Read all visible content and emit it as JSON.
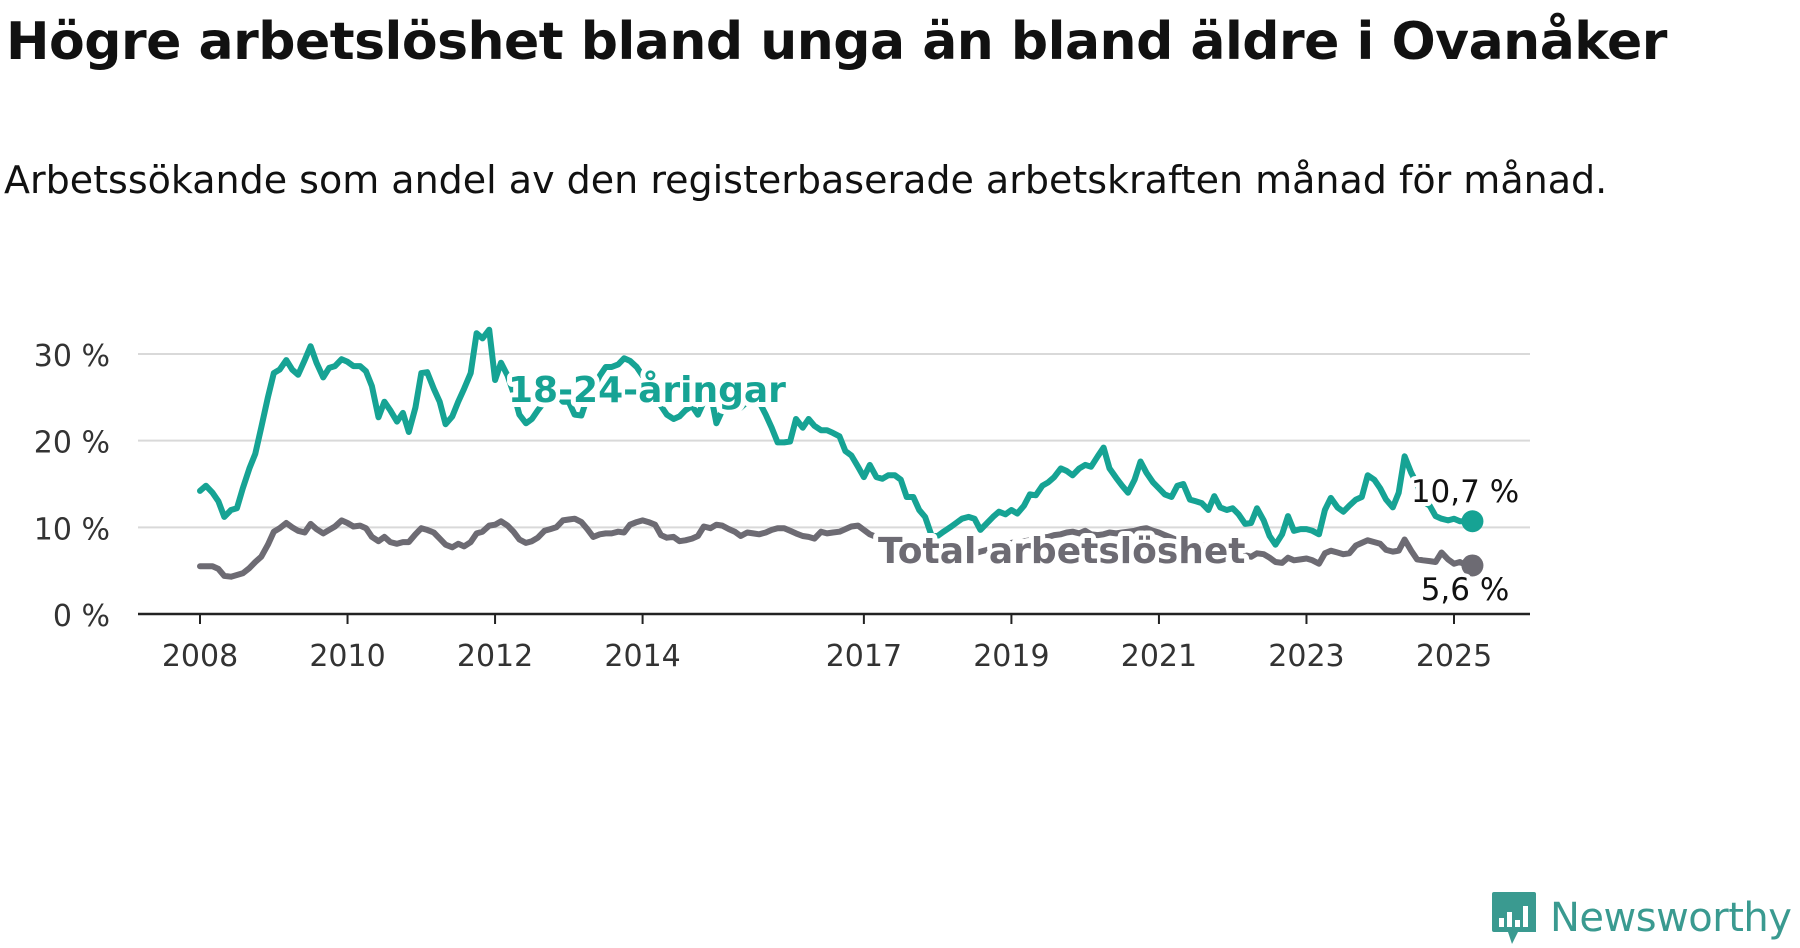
{
  "title": "Högre arbetslöshet bland unga än bland äldre i Ovanåker",
  "subtitle": "Arbetssökande som andel av den registerbaserade arbetskraften månad för månad.",
  "brand": {
    "name": "Newsworthy",
    "color": "#3a9a90"
  },
  "chart_data": {
    "type": "line",
    "title": "Högre arbetslöshet bland unga än bland äldre i Ovanåker",
    "subtitle": "Arbetssökande som andel av den registerbaserade arbetskraften månad för månad.",
    "xlabel": "",
    "ylabel": "",
    "ylim": [
      0,
      33
    ],
    "grid": true,
    "y_ticks": [
      0,
      10,
      20,
      30
    ],
    "y_tick_labels": [
      "0 %",
      "10 %",
      "20 %",
      "30 %"
    ],
    "x_ticks": [
      2008,
      2010,
      2012,
      2014,
      2017,
      2019,
      2021,
      2023,
      2025
    ],
    "x_tick_labels": [
      "2008",
      "2010",
      "2012",
      "2014",
      "2017",
      "2019",
      "2021",
      "2023",
      "2025"
    ],
    "series": [
      {
        "name": "18-24-åringar",
        "color": "#16a394",
        "x": [
          2008.0,
          2008.08,
          2008.17,
          2008.25,
          2008.33,
          2008.42,
          2008.5,
          2008.58,
          2008.67,
          2008.75,
          2008.83,
          2008.92,
          2009.0,
          2009.08,
          2009.17,
          2009.25,
          2009.33,
          2009.42,
          2009.5,
          2009.58,
          2009.67,
          2009.75,
          2009.83,
          2009.92,
          2010.0,
          2010.08,
          2010.17,
          2010.25,
          2010.33,
          2010.42,
          2010.5,
          2010.58,
          2010.67,
          2010.75,
          2010.83,
          2010.92,
          2011.0,
          2011.08,
          2011.17,
          2011.25,
          2011.33,
          2011.42,
          2011.5,
          2011.58,
          2011.67,
          2011.75,
          2011.83,
          2011.92,
          2012.0,
          2012.08,
          2012.17,
          2012.25,
          2012.33,
          2012.42,
          2012.5,
          2012.58,
          2012.67,
          2012.75,
          2012.83,
          2012.92,
          2013.0,
          2013.08,
          2013.17,
          2013.25,
          2013.33,
          2013.42,
          2013.5,
          2013.58,
          2013.67,
          2013.75,
          2013.83,
          2013.92,
          2014.0,
          2014.08,
          2014.17,
          2014.25,
          2014.33,
          2014.42,
          2014.5,
          2014.58,
          2014.67,
          2014.75,
          2014.83,
          2014.92,
          2015.0,
          2015.08,
          2015.17,
          2015.25,
          2015.33,
          2015.42,
          2015.5,
          2015.58,
          2015.67,
          2015.75,
          2015.83,
          2015.92,
          2016.0,
          2016.08,
          2016.17,
          2016.25,
          2016.33,
          2016.42,
          2016.5,
          2016.58,
          2016.67,
          2016.75,
          2016.83,
          2016.92,
          2017.0,
          2017.08,
          2017.17,
          2017.25,
          2017.33,
          2017.42,
          2017.5,
          2017.58,
          2017.67,
          2017.75,
          2017.83,
          2017.92,
          2018.0,
          2018.08,
          2018.17,
          2018.25,
          2018.33,
          2018.42,
          2018.5,
          2018.58,
          2018.67,
          2018.75,
          2018.83,
          2018.92,
          2019.0,
          2019.08,
          2019.17,
          2019.25,
          2019.33,
          2019.42,
          2019.5,
          2019.58,
          2019.67,
          2019.75,
          2019.83,
          2019.92,
          2020.0,
          2020.08,
          2020.17,
          2020.25,
          2020.33,
          2020.42,
          2020.5,
          2020.58,
          2020.67,
          2020.75,
          2020.83,
          2020.92,
          2021.0,
          2021.08,
          2021.17,
          2021.25,
          2021.33,
          2021.42,
          2021.5,
          2021.58,
          2021.67,
          2021.75,
          2021.83,
          2021.92,
          2022.0,
          2022.08,
          2022.17,
          2022.25,
          2022.33,
          2022.42,
          2022.5,
          2022.58,
          2022.67,
          2022.75,
          2022.83,
          2022.92,
          2023.0,
          2023.08,
          2023.17,
          2023.25,
          2023.33,
          2023.42,
          2023.5,
          2023.58,
          2023.67,
          2023.75,
          2023.83,
          2023.92,
          2024.0,
          2024.08,
          2024.17,
          2024.25,
          2024.33,
          2024.42,
          2024.5,
          2024.58,
          2024.67,
          2024.75,
          2024.83,
          2024.92,
          2025.0,
          2025.08,
          2025.17,
          2025.25
        ],
        "values": [
          14.2,
          14.8,
          14.0,
          13.0,
          11.2,
          12.0,
          12.2,
          14.5,
          16.8,
          18.5,
          21.5,
          25.0,
          27.8,
          28.2,
          29.3,
          28.2,
          27.6,
          29.3,
          30.9,
          29.0,
          27.3,
          28.4,
          28.6,
          29.4,
          29.1,
          28.6,
          28.6,
          28.0,
          26.3,
          22.7,
          24.5,
          23.5,
          22.2,
          23.2,
          21.0,
          23.8,
          27.8,
          27.9,
          26.0,
          24.5,
          21.9,
          22.8,
          24.5,
          26.0,
          27.8,
          32.4,
          31.8,
          32.8,
          27.0,
          29.0,
          27.5,
          25.5,
          23.0,
          22.0,
          22.5,
          23.5,
          24.5,
          25.0,
          25.5,
          24.5,
          24.5,
          23.0,
          22.9,
          25.0,
          26.0,
          27.5,
          28.5,
          28.5,
          28.8,
          29.5,
          29.2,
          28.5,
          27.5,
          26.0,
          25.0,
          24.0,
          23.0,
          22.5,
          22.8,
          23.5,
          24.0,
          23.0,
          24.5,
          25.5,
          22.0,
          23.5,
          24.0,
          23.5,
          23.8,
          24.5,
          25.2,
          24.5,
          23.0,
          21.5,
          19.8,
          19.8,
          19.9,
          22.5,
          21.5,
          22.5,
          21.7,
          21.2,
          21.2,
          20.9,
          20.5,
          18.8,
          18.3,
          17.0,
          15.8,
          17.2,
          15.8,
          15.6,
          16.0,
          16.0,
          15.5,
          13.5,
          13.5,
          12.0,
          11.2,
          9.0,
          9.0,
          9.5,
          10.0,
          10.5,
          11.0,
          11.2,
          11.0,
          9.7,
          10.5,
          11.2,
          11.8,
          11.5,
          12.0,
          11.6,
          12.5,
          13.8,
          13.7,
          14.8,
          15.2,
          15.8,
          16.8,
          16.5,
          16.0,
          16.8,
          17.2,
          17.0,
          18.2,
          19.2,
          16.8,
          15.7,
          14.8,
          14.0,
          15.5,
          17.6,
          16.3,
          15.2,
          14.5,
          13.8,
          13.5,
          14.8,
          15.0,
          13.2,
          13.0,
          12.8,
          12.0,
          13.6,
          12.3,
          12.0,
          12.2,
          11.5,
          10.4,
          10.5,
          12.2,
          10.8,
          9.0,
          8.0,
          9.2,
          11.3,
          9.6,
          9.8,
          9.8,
          9.6,
          9.2,
          12.0,
          13.4,
          12.3,
          11.8,
          12.5,
          13.2,
          13.5,
          16.0,
          15.5,
          14.5,
          13.2,
          12.3,
          14.0,
          18.2,
          16.3,
          15.0,
          13.0,
          12.5,
          11.3,
          11.0,
          10.8,
          11.0,
          10.7,
          10.7,
          10.7
        ],
        "end_label": "10,7 %",
        "series_label": "18-24-åringar"
      },
      {
        "name": "Total arbetslöshet",
        "color": "#6d6b73",
        "x": [
          2008.0,
          2008.08,
          2008.17,
          2008.25,
          2008.33,
          2008.42,
          2008.5,
          2008.58,
          2008.67,
          2008.75,
          2008.83,
          2008.92,
          2009.0,
          2009.08,
          2009.17,
          2009.25,
          2009.33,
          2009.42,
          2009.5,
          2009.58,
          2009.67,
          2009.75,
          2009.83,
          2009.92,
          2010.0,
          2010.08,
          2010.17,
          2010.25,
          2010.33,
          2010.42,
          2010.5,
          2010.58,
          2010.67,
          2010.75,
          2010.83,
          2010.92,
          2011.0,
          2011.08,
          2011.17,
          2011.25,
          2011.33,
          2011.42,
          2011.5,
          2011.58,
          2011.67,
          2011.75,
          2011.83,
          2011.92,
          2012.0,
          2012.08,
          2012.17,
          2012.25,
          2012.33,
          2012.42,
          2012.5,
          2012.58,
          2012.67,
          2012.75,
          2012.83,
          2012.92,
          2013.0,
          2013.08,
          2013.17,
          2013.25,
          2013.33,
          2013.42,
          2013.5,
          2013.58,
          2013.67,
          2013.75,
          2013.83,
          2013.92,
          2014.0,
          2014.08,
          2014.17,
          2014.25,
          2014.33,
          2014.42,
          2014.5,
          2014.58,
          2014.67,
          2014.75,
          2014.83,
          2014.92,
          2015.0,
          2015.08,
          2015.17,
          2015.25,
          2015.33,
          2015.42,
          2015.5,
          2015.58,
          2015.67,
          2015.75,
          2015.83,
          2015.92,
          2016.0,
          2016.08,
          2016.17,
          2016.25,
          2016.33,
          2016.42,
          2016.5,
          2016.58,
          2016.67,
          2016.75,
          2016.83,
          2016.92,
          2017.0,
          2017.08,
          2017.17,
          2017.25,
          2017.33,
          2017.42,
          2017.5,
          2017.58,
          2017.67,
          2017.75,
          2017.83,
          2017.92,
          2018.0,
          2018.08,
          2018.17,
          2018.25,
          2018.33,
          2018.42,
          2018.5,
          2018.58,
          2018.67,
          2018.75,
          2018.83,
          2018.92,
          2019.0,
          2019.08,
          2019.17,
          2019.25,
          2019.33,
          2019.42,
          2019.5,
          2019.58,
          2019.67,
          2019.75,
          2019.83,
          2019.92,
          2020.0,
          2020.08,
          2020.17,
          2020.25,
          2020.33,
          2020.42,
          2020.5,
          2020.58,
          2020.67,
          2020.75,
          2020.83,
          2020.92,
          2021.0,
          2021.08,
          2021.17,
          2021.25,
          2021.33,
          2021.42,
          2021.5,
          2021.58,
          2021.67,
          2021.75,
          2021.83,
          2021.92,
          2022.0,
          2022.08,
          2022.17,
          2022.25,
          2022.33,
          2022.42,
          2022.5,
          2022.58,
          2022.67,
          2022.75,
          2022.83,
          2022.92,
          2023.0,
          2023.08,
          2023.17,
          2023.25,
          2023.33,
          2023.42,
          2023.5,
          2023.58,
          2023.67,
          2023.75,
          2023.83,
          2023.92,
          2024.0,
          2024.08,
          2024.17,
          2024.25,
          2024.33,
          2024.42,
          2024.5,
          2024.58,
          2024.67,
          2024.75,
          2024.83,
          2024.92,
          2025.0,
          2025.08,
          2025.17,
          2025.25
        ],
        "values": [
          5.5,
          5.5,
          5.5,
          5.2,
          4.4,
          4.3,
          4.5,
          4.7,
          5.3,
          6.0,
          6.6,
          8.0,
          9.5,
          9.9,
          10.5,
          10.0,
          9.6,
          9.4,
          10.4,
          9.8,
          9.3,
          9.7,
          10.1,
          10.8,
          10.5,
          10.1,
          10.2,
          9.9,
          8.9,
          8.4,
          8.9,
          8.3,
          8.1,
          8.3,
          8.3,
          9.2,
          9.9,
          9.7,
          9.4,
          8.7,
          8.0,
          7.7,
          8.1,
          7.8,
          8.3,
          9.3,
          9.5,
          10.2,
          10.3,
          10.7,
          10.2,
          9.5,
          8.6,
          8.2,
          8.4,
          8.8,
          9.6,
          9.8,
          10.0,
          10.8,
          10.9,
          11.0,
          10.6,
          9.8,
          8.9,
          9.2,
          9.3,
          9.3,
          9.5,
          9.4,
          10.3,
          10.6,
          10.8,
          10.6,
          10.3,
          9.1,
          8.8,
          8.9,
          8.4,
          8.5,
          8.7,
          9.0,
          10.1,
          9.9,
          10.3,
          10.2,
          9.8,
          9.5,
          9.0,
          9.4,
          9.3,
          9.2,
          9.4,
          9.7,
          9.9,
          9.9,
          9.6,
          9.3,
          9.0,
          8.9,
          8.7,
          9.5,
          9.3,
          9.4,
          9.5,
          9.8,
          10.1,
          10.2,
          9.7,
          9.2,
          8.9,
          8.3,
          7.9,
          7.8,
          7.6,
          7.3,
          7.1,
          6.8,
          6.6,
          6.4,
          6.2,
          6.1,
          6.3,
          6.5,
          6.8,
          6.9,
          7.0,
          7.2,
          7.4,
          7.6,
          7.8,
          8.0,
          8.2,
          8.3,
          8.4,
          8.5,
          8.7,
          8.8,
          8.9,
          9.1,
          9.2,
          9.4,
          9.5,
          9.3,
          9.6,
          9.2,
          9.1,
          9.2,
          9.4,
          9.3,
          9.4,
          9.5,
          9.6,
          9.8,
          9.9,
          9.6,
          9.4,
          9.1,
          8.8,
          8.5,
          8.2,
          8.0,
          8.1,
          7.9,
          7.8,
          7.8,
          7.7,
          7.5,
          7.3,
          7.0,
          6.8,
          6.6,
          7.0,
          6.9,
          6.5,
          6.0,
          5.9,
          6.5,
          6.2,
          6.3,
          6.4,
          6.2,
          5.8,
          7.0,
          7.3,
          7.1,
          6.9,
          7.0,
          7.9,
          8.2,
          8.5,
          8.3,
          8.1,
          7.4,
          7.2,
          7.3,
          8.6,
          7.3,
          6.3,
          6.2,
          6.1,
          6.0,
          7.1,
          6.3,
          5.8,
          6.0,
          5.6,
          5.6
        ],
        "end_label": "5,6 %",
        "series_label": "Total arbetslöshet"
      }
    ]
  }
}
